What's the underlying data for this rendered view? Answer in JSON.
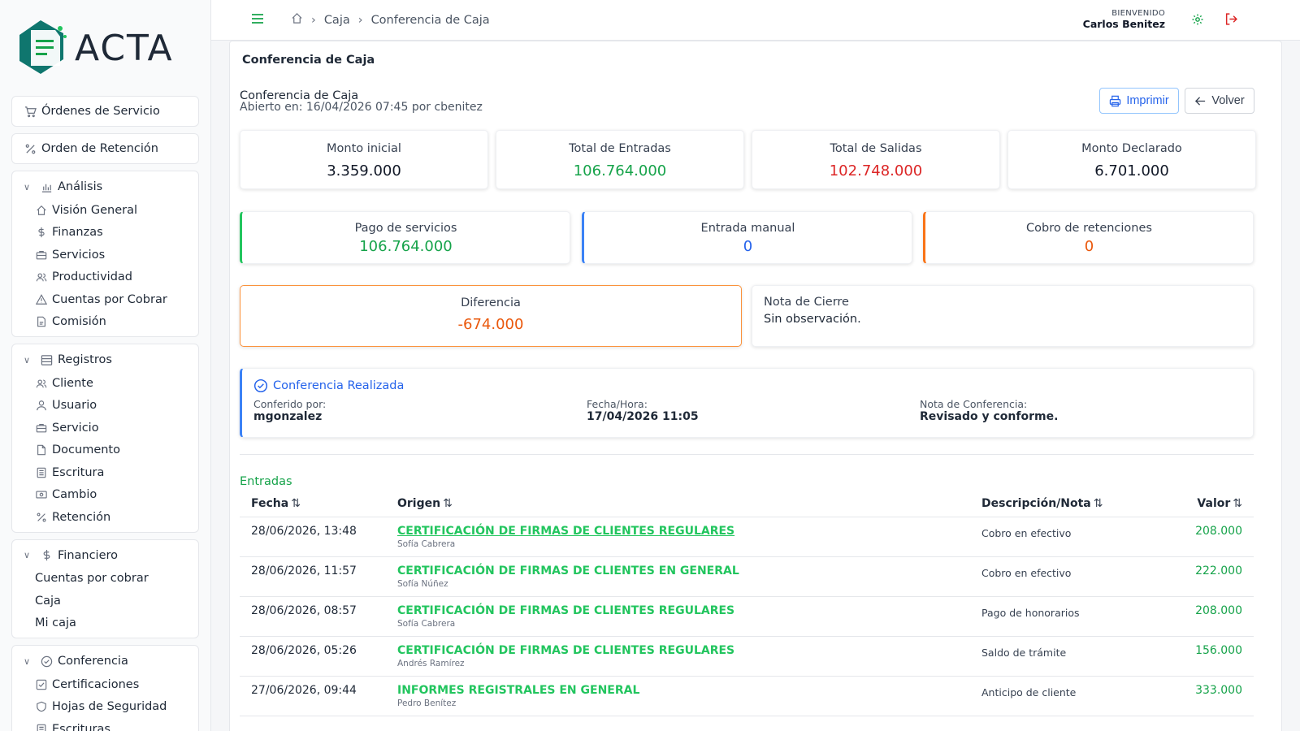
{
  "brand": {
    "name": "ACTA",
    "color": "#16a34a"
  },
  "sidebar": {
    "singles": [
      {
        "label": "Órdenes de Servicio",
        "icon": "cart-icon"
      },
      {
        "label": "Orden de Retención",
        "icon": "percent-icon"
      }
    ],
    "groups": [
      {
        "label": "Análisis",
        "icon": "bar-chart-icon",
        "items": [
          {
            "label": "Visión General",
            "icon": "home-icon"
          },
          {
            "label": "Finanzas",
            "icon": "dollar-icon"
          },
          {
            "label": "Servicios",
            "icon": "briefcase-icon"
          },
          {
            "label": "Productividad",
            "icon": "users-icon"
          },
          {
            "label": "Cuentas por Cobrar",
            "icon": "warning-icon"
          },
          {
            "label": "Comisión",
            "icon": "document-icon"
          }
        ]
      },
      {
        "label": "Registros",
        "icon": "list-icon",
        "items": [
          {
            "label": "Cliente",
            "icon": "users-icon"
          },
          {
            "label": "Usuario",
            "icon": "user-icon"
          },
          {
            "label": "Servicio",
            "icon": "briefcase-icon"
          },
          {
            "label": "Documento",
            "icon": "file-icon"
          },
          {
            "label": "Escritura",
            "icon": "list-icon"
          },
          {
            "label": "Cambio",
            "icon": "money-icon"
          },
          {
            "label": "Retención",
            "icon": "percent-icon"
          }
        ]
      },
      {
        "label": "Financiero",
        "icon": "dollar-icon",
        "items": [
          {
            "label": "Cuentas por cobrar"
          },
          {
            "label": "Caja"
          },
          {
            "label": "Mi caja"
          }
        ]
      },
      {
        "label": "Conferencia",
        "icon": "check-circle-icon",
        "items": [
          {
            "label": "Certificaciones",
            "icon": "check-square-icon"
          },
          {
            "label": "Hojas de Seguridad",
            "icon": "shield-icon"
          },
          {
            "label": "Escrituras",
            "icon": "list-icon"
          }
        ]
      }
    ]
  },
  "topbar": {
    "breadcrumb": [
      "Caja",
      "Conferencia de Caja"
    ],
    "welcome_label": "BIENVENIDO",
    "user_name": "Carlos Benitez"
  },
  "panel": {
    "title": "Conferencia de Caja",
    "subtitle": "Conferencia de Caja",
    "opened": "Abierto en: 16/04/2026 07:45 por cbenitez",
    "print_label": "Imprimir",
    "back_label": "Volver"
  },
  "kpis": [
    {
      "title": "Monto inicial",
      "value": "3.359.000",
      "tone": ""
    },
    {
      "title": "Total de Entradas",
      "value": "106.764.000",
      "tone": "green"
    },
    {
      "title": "Total de Salidas",
      "value": "102.748.000",
      "tone": "red"
    },
    {
      "title": "Monto Declarado",
      "value": "6.701.000",
      "tone": ""
    }
  ],
  "sources": [
    {
      "title": "Pago de servicios",
      "value": "106.764.000",
      "tone": "green"
    },
    {
      "title": "Entrada manual",
      "value": "0",
      "tone": "blue"
    },
    {
      "title": "Cobro de retenciones",
      "value": "0",
      "tone": "orange"
    }
  ],
  "difference": {
    "title": "Diferencia",
    "value": "-674.000"
  },
  "closing_note": {
    "title": "Nota de Cierre",
    "value": "Sin observación."
  },
  "conference": {
    "status": "Conferencia Realizada",
    "by_label": "Conferido por:",
    "by_value": "mgonzalez",
    "date_label": "Fecha/Hora:",
    "date_value": "17/04/2026 11:05",
    "note_label": "Nota de Conferencia:",
    "note_value": "Revisado y conforme."
  },
  "entries": {
    "label": "Entradas",
    "columns": [
      "Fecha",
      "Origen",
      "Descripción/Nota",
      "Valor"
    ],
    "rows": [
      {
        "date": "28/06/2026, 13:48",
        "service": "CERTIFICACIÓN DE FIRMAS DE CLIENTES REGULARES",
        "person": "Sofía Cabrera",
        "note": "Cobro en efectivo",
        "value": "208.000",
        "hover": true
      },
      {
        "date": "28/06/2026, 11:57",
        "service": "CERTIFICACIÓN DE FIRMAS DE CLIENTES EN GENERAL",
        "person": "Sofía Núñez",
        "note": "Cobro en efectivo",
        "value": "222.000"
      },
      {
        "date": "28/06/2026, 08:57",
        "service": "CERTIFICACIÓN DE FIRMAS DE CLIENTES REGULARES",
        "person": "Sofía Cabrera",
        "note": "Pago de honorarios",
        "value": "208.000"
      },
      {
        "date": "28/06/2026, 05:26",
        "service": "CERTIFICACIÓN DE FIRMAS DE CLIENTES REGULARES",
        "person": "Andrés Ramírez",
        "note": "Saldo de trámite",
        "value": "156.000"
      },
      {
        "date": "27/06/2026, 09:44",
        "service": "INFORMES REGISTRALES EN GENERAL",
        "person": "Pedro Benítez",
        "note": "Anticipo de cliente",
        "value": "333.000"
      }
    ]
  }
}
